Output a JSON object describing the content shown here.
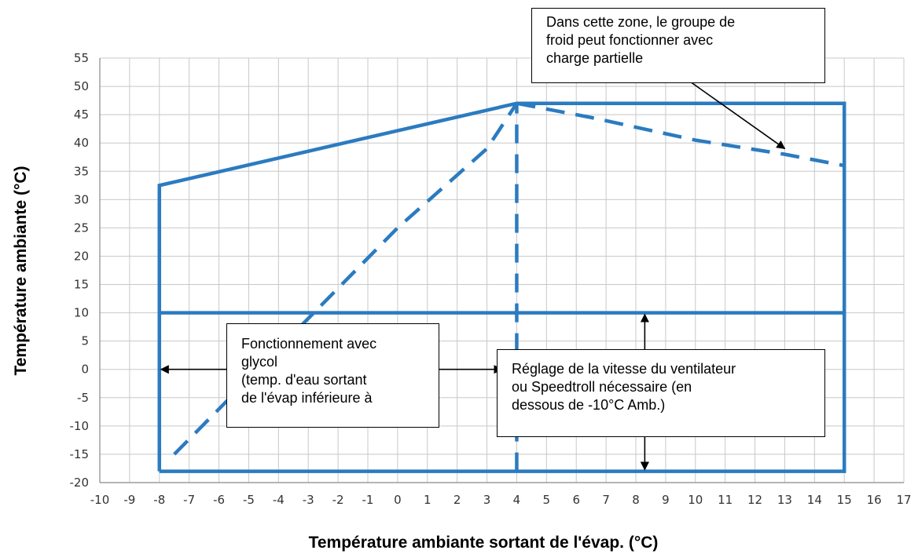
{
  "chart_data": {
    "type": "line",
    "xlabel": "Température ambiante sortant de l'évap. (°C)",
    "ylabel": "Température ambiante (°C)",
    "xlim": [
      -10,
      17
    ],
    "ylim": [
      -20,
      55
    ],
    "xticks": [
      -10,
      -9,
      -8,
      -7,
      -6,
      -5,
      -4,
      -3,
      -2,
      -1,
      0,
      1,
      2,
      3,
      4,
      5,
      6,
      7,
      8,
      9,
      10,
      11,
      12,
      13,
      14,
      15,
      16,
      17
    ],
    "yticks": [
      55,
      50,
      45,
      40,
      35,
      30,
      25,
      20,
      15,
      10,
      5,
      0,
      -5,
      -10,
      -15,
      -20
    ],
    "grid": true,
    "series": [
      {
        "style": "solid",
        "x": [
          -8,
          -8,
          4,
          15,
          15,
          -8
        ],
        "y": [
          -18,
          32.5,
          47,
          47,
          -18,
          -18
        ]
      },
      {
        "style": "solid",
        "x": [
          -8,
          15
        ],
        "y": [
          10,
          10
        ]
      },
      {
        "style": "dashed",
        "x": [
          -7.5,
          -3,
          0,
          3,
          4
        ],
        "y": [
          -15,
          9,
          25,
          39,
          47
        ]
      },
      {
        "style": "dashed",
        "x": [
          4,
          4
        ],
        "y": [
          -18,
          47
        ]
      },
      {
        "style": "dashed",
        "x": [
          4,
          6.5,
          10,
          13,
          15
        ],
        "y": [
          47,
          44.5,
          40.5,
          38,
          36
        ]
      }
    ],
    "annotations": [
      {
        "id": "top",
        "lines": [
          "Dans cette zone, le groupe de",
          "froid peut fonctionner avec",
          "charge partielle"
        ],
        "arrow_to": [
          13,
          39
        ]
      },
      {
        "id": "left",
        "lines": [
          "Fonctionnement avec",
          "glycol",
          "(temp. d'eau sortant",
          "de l'évap inférieure à"
        ],
        "arrows_to": [
          [
            -8,
            0
          ],
          [
            3.5,
            0
          ]
        ]
      },
      {
        "id": "right",
        "lines": [
          "Réglage de la vitesse du ventilateur",
          "ou Speedtroll nécessaire (en",
          "dessous de -10°C Amb.)"
        ],
        "arrows_to": [
          [
            8.3,
            10
          ],
          [
            8.3,
            -18
          ]
        ]
      }
    ],
    "colors": {
      "line": "#2b7bc0",
      "grid": "#c8c8c8",
      "axis": "#888888",
      "arrow": "#000000"
    }
  }
}
